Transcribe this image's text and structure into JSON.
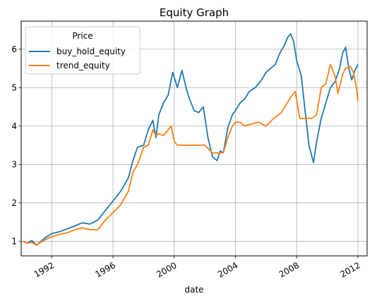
{
  "chart_data": {
    "type": "line",
    "title": "Equity Graph",
    "xlabel": "date",
    "ylabel": "",
    "xlim": [
      1990.0,
      2012.6
    ],
    "ylim": [
      0.62,
      6.73
    ],
    "x_ticks": [
      1992,
      1996,
      2000,
      2004,
      2008,
      2012
    ],
    "x_tick_labels": [
      "1992",
      "1996",
      "2000",
      "2004",
      "2008",
      "2012"
    ],
    "y_ticks": [
      1,
      2,
      3,
      4,
      5,
      6
    ],
    "y_tick_labels": [
      "1",
      "2",
      "3",
      "4",
      "5",
      "6"
    ],
    "grid": true,
    "legend": {
      "title": "Price",
      "placement": "top-left"
    },
    "series": [
      {
        "name": "buy_hold_equity",
        "color": "#1f77b4",
        "x": [
          1990.1,
          1990.4,
          1990.7,
          1991.0,
          1991.3,
          1991.6,
          1992.0,
          1992.5,
          1993.0,
          1993.5,
          1994.0,
          1994.5,
          1995.0,
          1995.5,
          1996.0,
          1996.5,
          1997.0,
          1997.3,
          1997.6,
          1998.0,
          1998.3,
          1998.6,
          1998.8,
          1999.0,
          1999.3,
          1999.6,
          1999.9,
          2000.2,
          2000.5,
          2000.8,
          2001.0,
          2001.3,
          2001.6,
          2001.9,
          2002.2,
          2002.5,
          2002.8,
          2003.0,
          2003.2,
          2003.5,
          2003.8,
          2004.0,
          2004.3,
          2004.6,
          2004.9,
          2005.3,
          2005.7,
          2006.0,
          2006.3,
          2006.6,
          2006.9,
          2007.2,
          2007.4,
          2007.6,
          2007.8,
          2008.0,
          2008.3,
          2008.6,
          2008.8,
          2009.0,
          2009.1,
          2009.3,
          2009.6,
          2009.9,
          2010.2,
          2010.5,
          2010.8,
          2011.0,
          2011.2,
          2011.4,
          2011.6,
          2011.8,
          2012.0
        ],
        "y": [
          1.0,
          0.95,
          1.02,
          0.9,
          1.0,
          1.1,
          1.2,
          1.25,
          1.32,
          1.4,
          1.48,
          1.45,
          1.55,
          1.8,
          2.05,
          2.3,
          2.65,
          3.1,
          3.45,
          3.5,
          3.9,
          4.15,
          3.7,
          4.3,
          4.6,
          4.8,
          5.4,
          5.0,
          5.45,
          4.95,
          4.7,
          4.4,
          4.35,
          4.5,
          3.7,
          3.2,
          3.1,
          3.35,
          3.3,
          3.95,
          4.3,
          4.4,
          4.6,
          4.7,
          4.9,
          5.0,
          5.2,
          5.4,
          5.5,
          5.6,
          5.9,
          6.1,
          6.3,
          6.4,
          6.2,
          5.7,
          5.3,
          4.2,
          3.5,
          3.2,
          3.05,
          3.6,
          4.2,
          4.6,
          5.0,
          5.15,
          5.5,
          5.9,
          6.05,
          5.5,
          5.2,
          5.45,
          5.6
        ]
      },
      {
        "name": "trend_equity",
        "color": "#ff7f0e",
        "x": [
          1990.1,
          1990.4,
          1990.7,
          1991.0,
          1991.3,
          1991.6,
          1992.0,
          1992.5,
          1993.0,
          1993.5,
          1994.0,
          1994.5,
          1995.0,
          1995.5,
          1996.0,
          1996.5,
          1997.0,
          1997.3,
          1997.6,
          1998.0,
          1998.3,
          1998.6,
          1998.8,
          1999.0,
          1999.3,
          1999.6,
          1999.8,
          2000.0,
          2000.2,
          2001.0,
          2002.0,
          2002.5,
          2003.0,
          2003.2,
          2003.5,
          2003.8,
          2004.0,
          2004.3,
          2004.6,
          2005.0,
          2005.5,
          2006.0,
          2006.5,
          2007.0,
          2007.3,
          2007.6,
          2007.9,
          2008.2,
          2008.6,
          2009.0,
          2009.3,
          2009.6,
          2009.9,
          2010.2,
          2010.5,
          2010.7,
          2011.0,
          2011.2,
          2011.5,
          2011.7,
          2011.9,
          2012.0
        ],
        "y": [
          1.0,
          0.95,
          0.97,
          0.9,
          0.98,
          1.05,
          1.12,
          1.18,
          1.22,
          1.3,
          1.35,
          1.3,
          1.3,
          1.55,
          1.75,
          1.95,
          2.3,
          2.8,
          3.0,
          3.45,
          3.5,
          3.9,
          3.75,
          3.8,
          3.75,
          3.9,
          4.0,
          3.6,
          3.5,
          3.5,
          3.5,
          3.3,
          3.3,
          3.3,
          3.7,
          4.0,
          4.1,
          4.1,
          4.0,
          4.05,
          4.1,
          4.0,
          4.2,
          4.35,
          4.55,
          4.75,
          4.9,
          4.2,
          4.2,
          4.2,
          4.3,
          5.0,
          5.1,
          5.6,
          5.3,
          4.85,
          5.35,
          5.5,
          5.55,
          5.4,
          5.0,
          4.65
        ]
      }
    ]
  }
}
